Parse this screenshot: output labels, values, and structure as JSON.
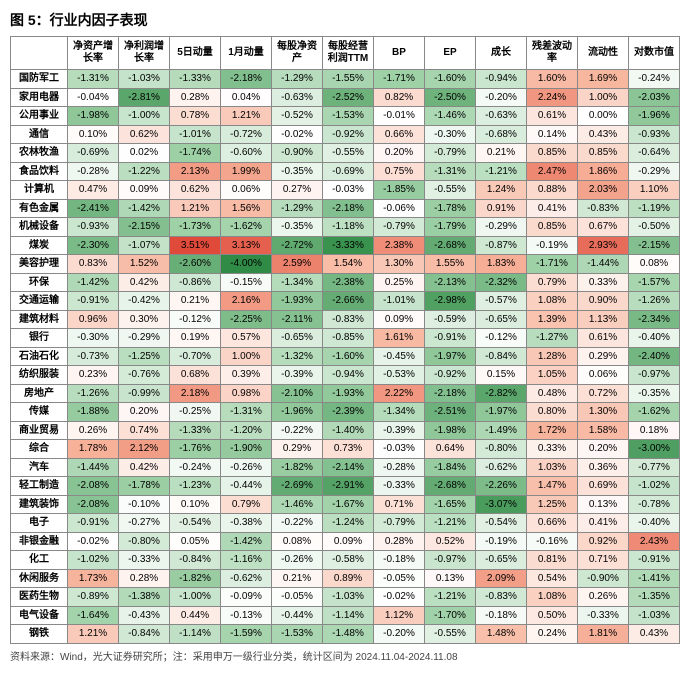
{
  "title": "图 5：行业内因子表现",
  "footer": "资料来源：Wind，光大证券研究所；注：采用申万一级行业分类，统计区间为 2024.11.04-2024.11.08",
  "columns": [
    "净资产增长率",
    "净利润增长率",
    "5日动量",
    "1月动量",
    "每股净资产",
    "每股经营利润TTM",
    "BP",
    "EP",
    "成长",
    "残差波动率",
    "流动性",
    "对数市值"
  ],
  "col_widths": [
    "54px",
    "48px",
    "48px",
    "48px",
    "48px",
    "48px",
    "48px",
    "48px",
    "48px",
    "48px",
    "48px",
    "48px",
    "48px"
  ],
  "color_scale": {
    "neg_max": "#2f8b46",
    "neg_mid": "#9dd0a5",
    "neutral": "#ffffff",
    "pos_mid": "#f7b39b",
    "pos_max": "#e04a3a",
    "threshold": 3.5
  },
  "rows": [
    {
      "label": "国防军工",
      "v": [
        -1.31,
        -1.03,
        -1.33,
        -2.18,
        -1.29,
        -1.55,
        -1.71,
        -1.6,
        -0.94,
        1.6,
        1.69,
        -0.24
      ]
    },
    {
      "label": "家用电器",
      "v": [
        -0.04,
        -2.81,
        0.28,
        0.04,
        -0.63,
        -2.52,
        0.82,
        -2.5,
        -0.2,
        2.24,
        1.0,
        -2.03
      ]
    },
    {
      "label": "公用事业",
      "v": [
        -1.98,
        -1.0,
        0.78,
        1.21,
        -0.52,
        -1.53,
        -0.01,
        -1.46,
        -0.63,
        0.61,
        0.0,
        -1.96
      ]
    },
    {
      "label": "通信",
      "v": [
        0.1,
        0.62,
        -1.01,
        -0.72,
        -0.02,
        -0.92,
        0.66,
        -0.3,
        -0.68,
        0.14,
        0.43,
        -0.93
      ]
    },
    {
      "label": "农林牧渔",
      "v": [
        -0.69,
        0.02,
        -1.74,
        -0.6,
        -0.9,
        -0.55,
        0.2,
        -0.79,
        0.21,
        0.85,
        0.85,
        -0.64
      ]
    },
    {
      "label": "食品饮料",
      "v": [
        -0.28,
        -1.22,
        2.13,
        1.99,
        -0.35,
        -0.69,
        0.75,
        -1.31,
        -1.21,
        2.47,
        1.86,
        -0.29
      ]
    },
    {
      "label": "计算机",
      "v": [
        0.47,
        0.09,
        0.62,
        0.06,
        0.27,
        -0.03,
        -1.85,
        -0.55,
        1.24,
        0.88,
        2.03,
        1.1
      ]
    },
    {
      "label": "有色金属",
      "v": [
        -2.41,
        -1.42,
        1.21,
        1.56,
        -1.29,
        -2.18,
        -0.06,
        -1.78,
        0.91,
        0.41,
        -0.83,
        -1.19
      ]
    },
    {
      "label": "机械设备",
      "v": [
        -0.93,
        -2.15,
        -1.73,
        -1.62,
        -0.35,
        -1.18,
        -0.79,
        -1.79,
        -0.29,
        0.85,
        0.67,
        -0.5
      ]
    },
    {
      "label": "煤炭",
      "v": [
        -2.3,
        -1.07,
        3.51,
        3.13,
        -2.72,
        -3.33,
        2.38,
        -2.68,
        -0.87,
        -0.19,
        2.93,
        -2.15
      ]
    },
    {
      "label": "美容护理",
      "v": [
        0.83,
        1.52,
        -2.6,
        -4.0,
        2.59,
        1.54,
        1.3,
        1.55,
        1.83,
        -1.71,
        -1.44,
        0.08
      ]
    },
    {
      "label": "环保",
      "v": [
        -1.42,
        0.42,
        -0.86,
        -0.15,
        -1.34,
        -2.38,
        0.25,
        -2.13,
        -2.32,
        0.79,
        0.33,
        -1.57
      ]
    },
    {
      "label": "交通运输",
      "v": [
        -0.91,
        -0.42,
        0.21,
        2.16,
        -1.93,
        -2.66,
        -1.01,
        -2.98,
        -0.57,
        1.08,
        0.9,
        -1.26
      ]
    },
    {
      "label": "建筑材料",
      "v": [
        0.96,
        0.3,
        -0.12,
        -2.25,
        -2.11,
        -0.83,
        0.09,
        -0.59,
        -0.65,
        1.39,
        1.13,
        -2.34
      ]
    },
    {
      "label": "银行",
      "v": [
        -0.3,
        -0.29,
        0.19,
        0.57,
        -0.65,
        -0.85,
        1.61,
        -0.91,
        -0.12,
        -1.27,
        0.61,
        -0.4
      ]
    },
    {
      "label": "石油石化",
      "v": [
        -0.73,
        -1.25,
        -0.7,
        1.0,
        -1.32,
        -1.6,
        -0.45,
        -1.97,
        -0.84,
        1.28,
        0.29,
        -2.4
      ]
    },
    {
      "label": "纺织服装",
      "v": [
        0.23,
        -0.76,
        0.68,
        0.39,
        -0.39,
        -0.94,
        -0.53,
        -0.92,
        0.15,
        1.05,
        0.06,
        -0.97
      ]
    },
    {
      "label": "房地产",
      "v": [
        -1.26,
        -0.99,
        2.18,
        0.98,
        -2.1,
        -1.93,
        2.22,
        -2.18,
        -2.82,
        0.48,
        0.72,
        -0.35
      ]
    },
    {
      "label": "传媒",
      "v": [
        -1.88,
        0.2,
        -0.25,
        -1.31,
        -1.96,
        -2.39,
        -1.34,
        -2.51,
        -1.97,
        0.8,
        1.3,
        -1.62
      ]
    },
    {
      "label": "商业贸易",
      "v": [
        0.26,
        0.74,
        -1.33,
        -1.2,
        -0.22,
        -1.4,
        -0.39,
        -1.98,
        -1.49,
        1.72,
        1.58,
        0.18
      ]
    },
    {
      "label": "综合",
      "v": [
        1.78,
        2.12,
        -1.76,
        -1.9,
        0.29,
        0.73,
        -0.03,
        0.64,
        -0.8,
        0.33,
        0.2,
        -3.0
      ]
    },
    {
      "label": "汽车",
      "v": [
        -1.44,
        0.42,
        -0.24,
        -0.26,
        -1.82,
        -2.14,
        -0.28,
        -1.84,
        -0.62,
        1.03,
        0.36,
        -0.77
      ]
    },
    {
      "label": "轻工制造",
      "v": [
        -2.08,
        -1.78,
        -1.23,
        -0.44,
        -2.69,
        -2.91,
        -0.33,
        -2.68,
        -2.26,
        1.47,
        0.69,
        -1.02
      ]
    },
    {
      "label": "建筑装饰",
      "v": [
        -2.08,
        -0.1,
        0.1,
        0.79,
        -1.46,
        -1.67,
        0.71,
        -1.65,
        -3.07,
        1.25,
        0.13,
        -0.78
      ]
    },
    {
      "label": "电子",
      "v": [
        -0.91,
        -0.27,
        -0.54,
        -0.38,
        -0.22,
        -1.24,
        -0.79,
        -1.21,
        -0.54,
        0.66,
        0.41,
        -0.4
      ]
    },
    {
      "label": "非银金融",
      "v": [
        -0.02,
        -0.8,
        0.05,
        -1.42,
        0.08,
        0.09,
        0.28,
        0.52,
        -0.19,
        -0.16,
        0.92,
        2.43
      ]
    },
    {
      "label": "化工",
      "v": [
        -1.02,
        -0.33,
        -0.84,
        -1.16,
        -0.26,
        -0.58,
        -0.18,
        -0.97,
        -0.65,
        0.81,
        0.71,
        -0.91
      ]
    },
    {
      "label": "休闲服务",
      "v": [
        1.73,
        0.28,
        -1.82,
        -0.62,
        0.21,
        0.89,
        -0.05,
        0.13,
        2.09,
        0.54,
        -0.9,
        -1.41
      ]
    },
    {
      "label": "医药生物",
      "v": [
        -0.89,
        -1.38,
        -1.0,
        -0.09,
        -0.05,
        -1.03,
        -0.02,
        -1.21,
        -0.83,
        1.08,
        0.26,
        -1.35
      ]
    },
    {
      "label": "电气设备",
      "v": [
        -1.64,
        -0.43,
        0.44,
        -0.13,
        -0.44,
        -1.14,
        1.12,
        -1.7,
        -0.18,
        0.5,
        -0.33,
        -1.03
      ]
    },
    {
      "label": "钢铁",
      "v": [
        1.21,
        -0.84,
        -1.14,
        -1.59,
        -1.53,
        -1.48,
        -0.2,
        -0.55,
        1.48,
        0.24,
        1.81,
        0.43
      ]
    }
  ]
}
